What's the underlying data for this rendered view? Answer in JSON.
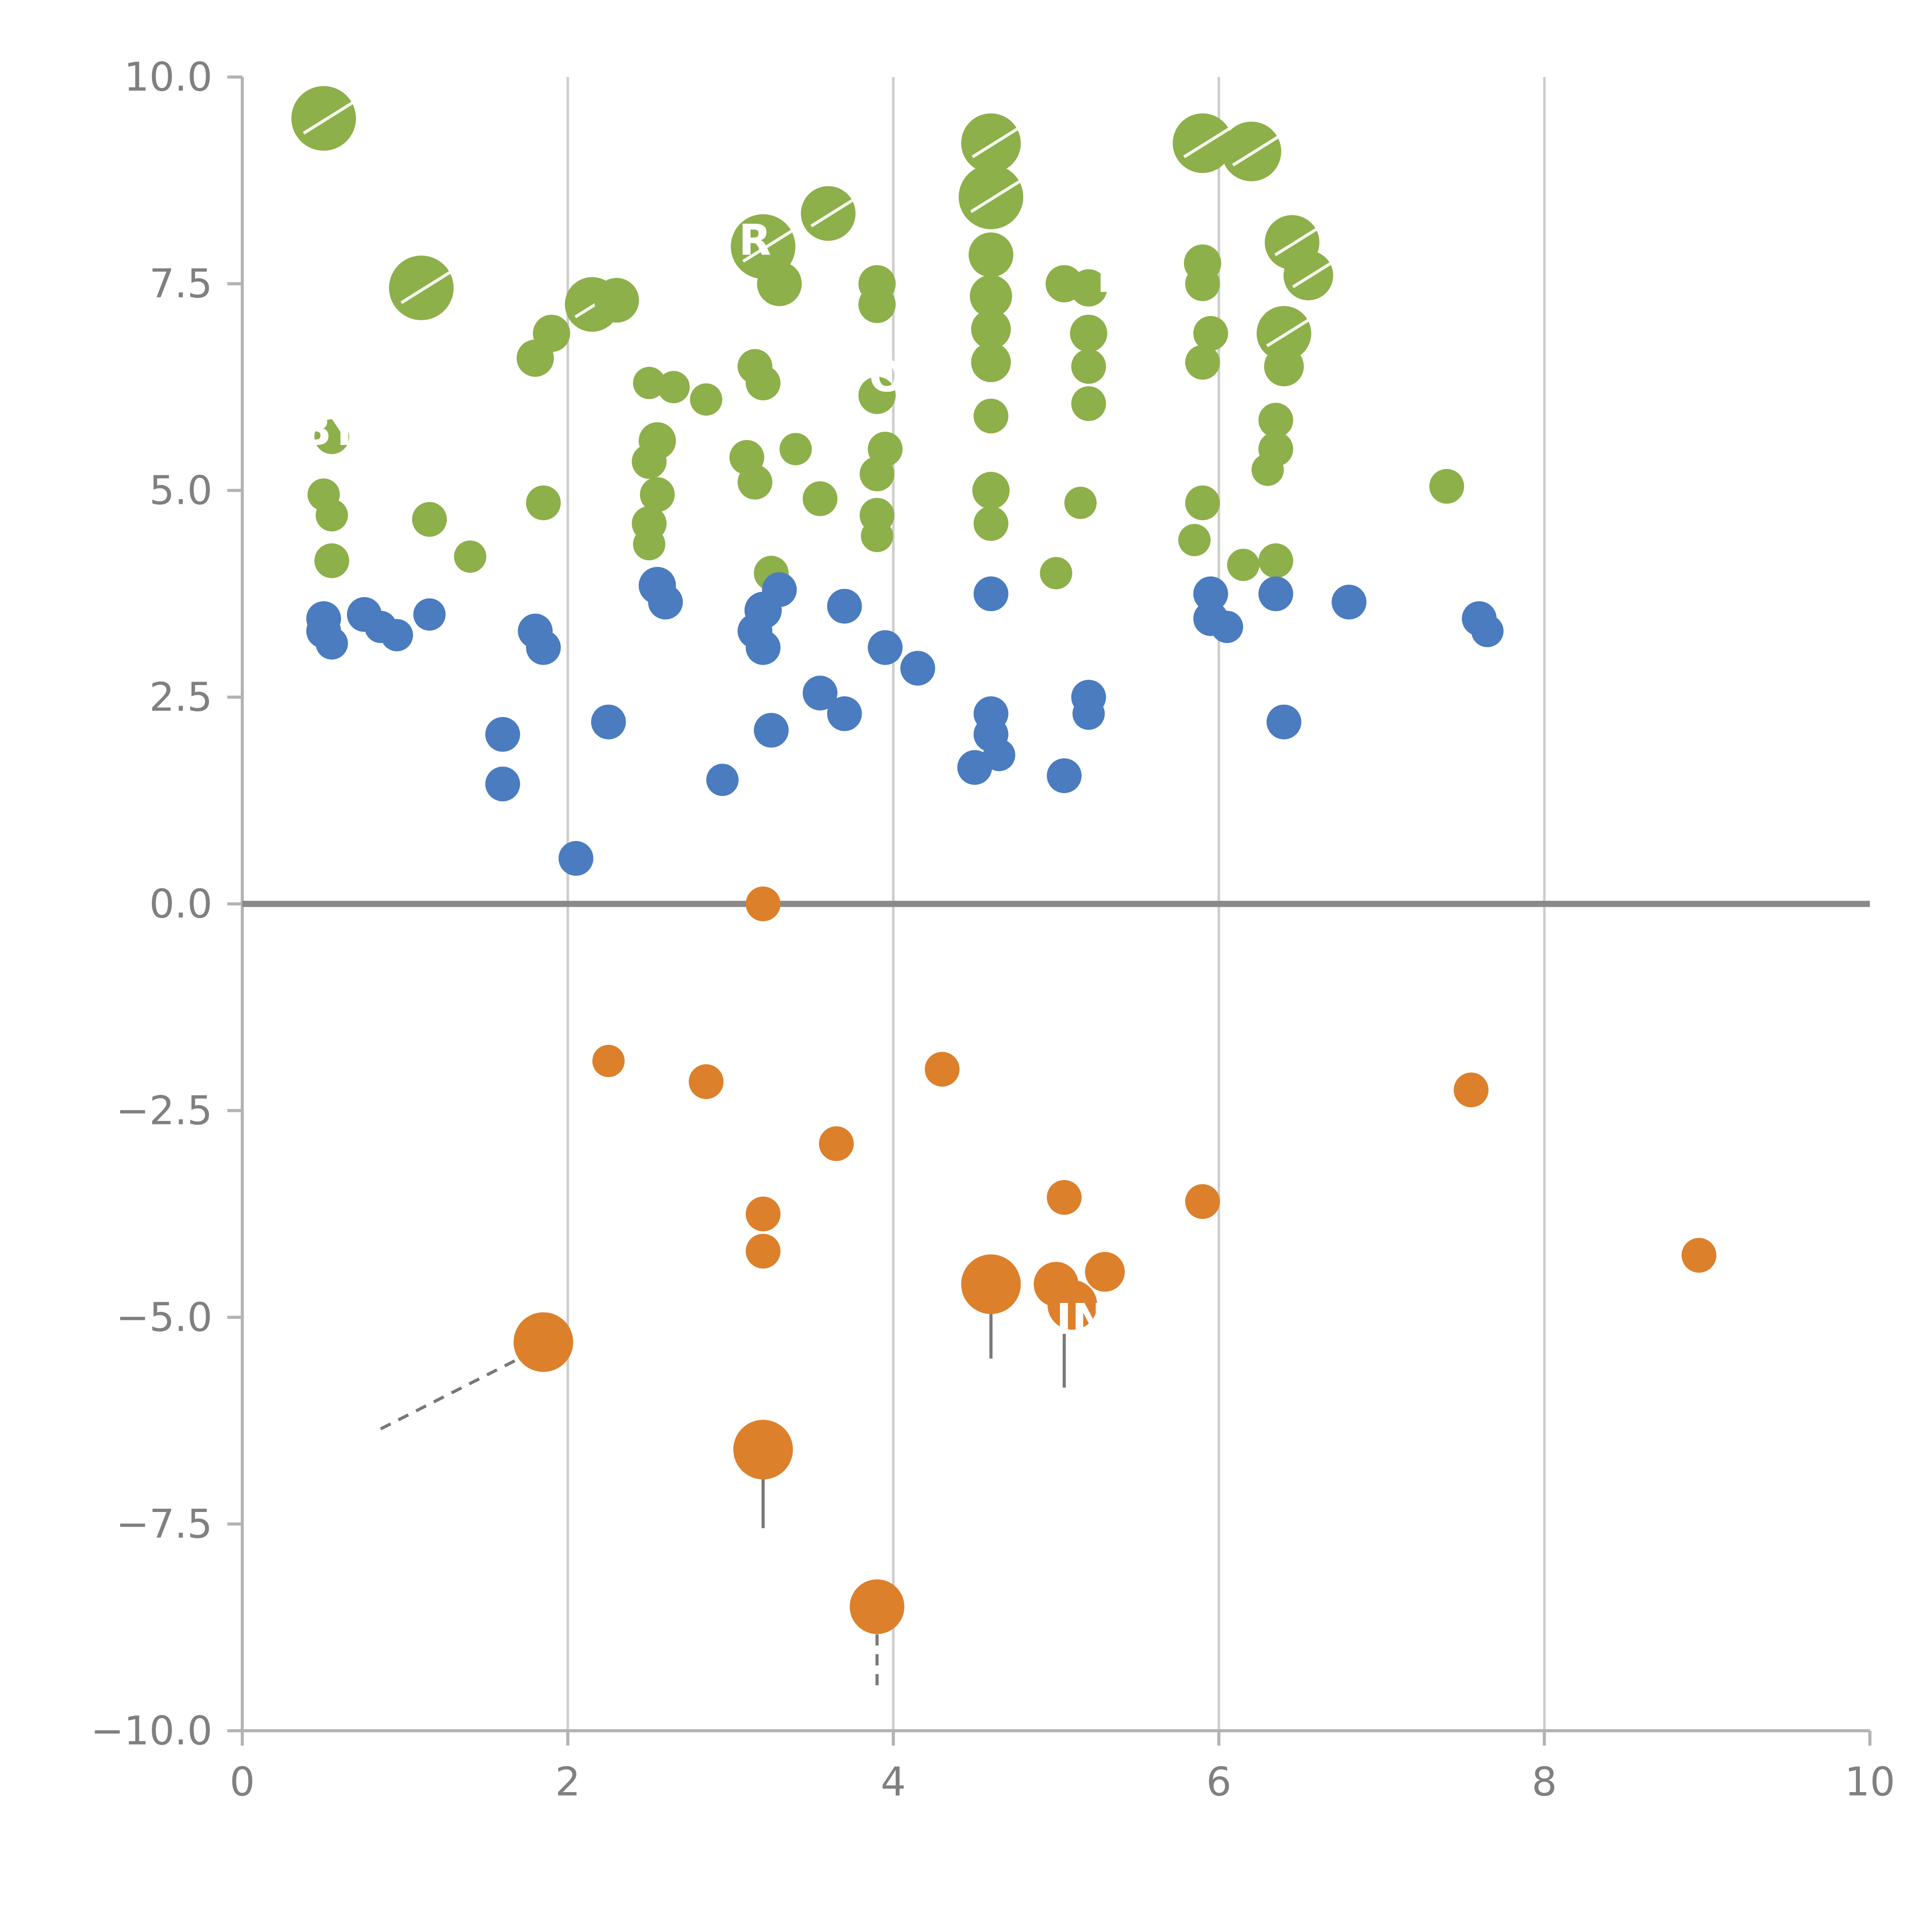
{
  "chart_data": {
    "type": "scatter",
    "title": "",
    "xlabel": "",
    "ylabel": "",
    "xlim": [
      0,
      10
    ],
    "ylim": [
      -10,
      10
    ],
    "x_ticks": [
      {
        "v": 0,
        "label": "0"
      },
      {
        "v": 2,
        "label": "2"
      },
      {
        "v": 4,
        "label": "4"
      },
      {
        "v": 6,
        "label": "6"
      },
      {
        "v": 8,
        "label": "8"
      },
      {
        "v": 10,
        "label": "10"
      }
    ],
    "y_ticks": [
      {
        "v": 10,
        "label": "10.0"
      },
      {
        "v": 7.5,
        "label": "7.5"
      },
      {
        "v": 5,
        "label": "5.0"
      },
      {
        "v": 2.5,
        "label": "2.5"
      },
      {
        "v": 0,
        "label": "0.0"
      },
      {
        "v": -2.5,
        "label": "−2.5"
      },
      {
        "v": -5,
        "label": "−5.0"
      },
      {
        "v": -7.5,
        "label": "−7.5"
      },
      {
        "v": -10,
        "label": "−10.0"
      }
    ],
    "grid_x": [
      2,
      4,
      6,
      8
    ],
    "zero_line_y": 0,
    "legend": "none",
    "point_format": [
      "x",
      "y",
      "radius_px",
      "has_white_pointer"
    ],
    "series": [
      {
        "name": "series-green",
        "color": "#8db04a",
        "points": [
          [
            0.5,
            9.5,
            26,
            1
          ],
          [
            1.1,
            7.45,
            26,
            1
          ],
          [
            0.55,
            5.65,
            14,
            0
          ],
          [
            0.5,
            4.95,
            13,
            0
          ],
          [
            0.55,
            4.7,
            13,
            0
          ],
          [
            0.55,
            4.15,
            14,
            0
          ],
          [
            1.15,
            4.65,
            14,
            0
          ],
          [
            1.4,
            4.2,
            13,
            0
          ],
          [
            1.85,
            4.85,
            14,
            0
          ],
          [
            1.8,
            6.6,
            15,
            0
          ],
          [
            1.9,
            6.9,
            15,
            0
          ],
          [
            2.15,
            7.25,
            22,
            1
          ],
          [
            2.3,
            7.3,
            18,
            0
          ],
          [
            2.5,
            6.3,
            13,
            0
          ],
          [
            2.65,
            6.25,
            13,
            0
          ],
          [
            2.55,
            5.6,
            15,
            0
          ],
          [
            2.5,
            5.35,
            14,
            0
          ],
          [
            2.55,
            4.95,
            14,
            0
          ],
          [
            2.5,
            4.6,
            14,
            0
          ],
          [
            2.5,
            4.35,
            13,
            0
          ],
          [
            2.85,
            6.1,
            13,
            0
          ],
          [
            3.2,
            7.95,
            26,
            1
          ],
          [
            3.3,
            7.5,
            18,
            0
          ],
          [
            3.15,
            6.5,
            14,
            0
          ],
          [
            3.2,
            6.3,
            14,
            0
          ],
          [
            3.1,
            5.4,
            14,
            0
          ],
          [
            3.15,
            5.1,
            14,
            0
          ],
          [
            3.25,
            4.0,
            14,
            0
          ],
          [
            3.4,
            5.5,
            13,
            0
          ],
          [
            3.6,
            8.35,
            22,
            1
          ],
          [
            3.55,
            4.9,
            14,
            0
          ],
          [
            3.9,
            7.5,
            15,
            0
          ],
          [
            3.9,
            7.25,
            15,
            0
          ],
          [
            3.9,
            6.15,
            15,
            0
          ],
          [
            3.95,
            5.5,
            14,
            0
          ],
          [
            3.9,
            5.2,
            14,
            0
          ],
          [
            3.9,
            4.7,
            14,
            0
          ],
          [
            3.9,
            4.45,
            13,
            0
          ],
          [
            4.6,
            9.2,
            24,
            1
          ],
          [
            4.6,
            8.55,
            26,
            1
          ],
          [
            4.6,
            7.85,
            18,
            0
          ],
          [
            4.6,
            7.35,
            17,
            0
          ],
          [
            4.6,
            6.95,
            16,
            0
          ],
          [
            4.6,
            6.55,
            16,
            0
          ],
          [
            4.6,
            5.9,
            14,
            0
          ],
          [
            4.6,
            5.0,
            15,
            0
          ],
          [
            4.6,
            4.6,
            14,
            0
          ],
          [
            5.05,
            7.5,
            15,
            0
          ],
          [
            5.2,
            7.45,
            15,
            0
          ],
          [
            5.2,
            6.9,
            15,
            0
          ],
          [
            5.2,
            6.5,
            14,
            0
          ],
          [
            5.2,
            6.05,
            14,
            0
          ],
          [
            5.15,
            4.85,
            13,
            0
          ],
          [
            5.0,
            4.0,
            13,
            0
          ],
          [
            5.9,
            9.2,
            24,
            1
          ],
          [
            6.2,
            9.1,
            24,
            1
          ],
          [
            5.9,
            7.75,
            15,
            0
          ],
          [
            5.9,
            7.5,
            14,
            0
          ],
          [
            5.95,
            6.9,
            14,
            0
          ],
          [
            5.9,
            6.55,
            14,
            0
          ],
          [
            5.9,
            4.85,
            14,
            0
          ],
          [
            5.85,
            4.4,
            13,
            0
          ],
          [
            6.45,
            8.0,
            22,
            1
          ],
          [
            6.55,
            7.6,
            20,
            1
          ],
          [
            6.4,
            6.9,
            22,
            1
          ],
          [
            6.4,
            6.5,
            16,
            0
          ],
          [
            6.35,
            5.85,
            14,
            0
          ],
          [
            6.35,
            5.5,
            14,
            0
          ],
          [
            6.3,
            5.25,
            13,
            0
          ],
          [
            6.35,
            4.15,
            14,
            0
          ],
          [
            6.15,
            4.1,
            13,
            0
          ],
          [
            7.4,
            5.05,
            14,
            0
          ]
        ]
      },
      {
        "name": "series-blue",
        "color": "#4a7cbf",
        "points": [
          [
            0.5,
            3.45,
            14,
            0
          ],
          [
            0.5,
            3.3,
            14,
            0
          ],
          [
            0.55,
            3.15,
            13,
            0
          ],
          [
            0.75,
            3.5,
            14,
            0
          ],
          [
            0.85,
            3.35,
            13,
            0
          ],
          [
            0.95,
            3.25,
            13,
            0
          ],
          [
            1.15,
            3.5,
            13,
            0
          ],
          [
            1.6,
            2.05,
            14,
            0
          ],
          [
            1.6,
            1.45,
            14,
            0
          ],
          [
            1.8,
            3.3,
            14,
            0
          ],
          [
            1.85,
            3.1,
            14,
            0
          ],
          [
            2.05,
            0.55,
            14,
            0
          ],
          [
            2.25,
            2.2,
            14,
            0
          ],
          [
            2.55,
            3.85,
            15,
            0
          ],
          [
            2.6,
            3.65,
            14,
            0
          ],
          [
            2.95,
            1.5,
            13,
            0
          ],
          [
            3.2,
            3.55,
            15,
            0
          ],
          [
            3.3,
            3.8,
            14,
            0
          ],
          [
            3.15,
            3.3,
            14,
            0
          ],
          [
            3.2,
            3.1,
            14,
            0
          ],
          [
            3.25,
            2.1,
            14,
            0
          ],
          [
            3.55,
            2.55,
            14,
            0
          ],
          [
            3.7,
            2.3,
            14,
            0
          ],
          [
            3.7,
            3.6,
            14,
            0
          ],
          [
            3.95,
            3.1,
            14,
            0
          ],
          [
            4.15,
            2.85,
            14,
            0
          ],
          [
            4.6,
            3.75,
            14,
            0
          ],
          [
            4.6,
            2.3,
            14,
            0
          ],
          [
            4.6,
            2.05,
            14,
            0
          ],
          [
            4.5,
            1.65,
            14,
            0
          ],
          [
            4.65,
            1.8,
            13,
            0
          ],
          [
            5.05,
            1.55,
            14,
            0
          ],
          [
            5.2,
            2.5,
            14,
            0
          ],
          [
            5.2,
            2.3,
            13,
            0
          ],
          [
            5.95,
            3.75,
            14,
            0
          ],
          [
            5.95,
            3.45,
            14,
            0
          ],
          [
            6.05,
            3.35,
            13,
            0
          ],
          [
            6.35,
            3.75,
            14,
            0
          ],
          [
            6.4,
            2.2,
            14,
            0
          ],
          [
            6.8,
            3.65,
            14,
            0
          ],
          [
            7.6,
            3.45,
            14,
            0
          ],
          [
            7.65,
            3.3,
            13,
            0
          ]
        ]
      },
      {
        "name": "series-orange",
        "color": "#dd802b",
        "points": [
          [
            3.2,
            0.0,
            14,
            0
          ],
          [
            2.25,
            -1.9,
            13,
            0
          ],
          [
            2.85,
            -2.15,
            14,
            0
          ],
          [
            4.3,
            -2.0,
            14,
            0
          ],
          [
            3.65,
            -2.9,
            14,
            0
          ],
          [
            3.2,
            -3.75,
            14,
            0
          ],
          [
            3.2,
            -4.2,
            14,
            0
          ],
          [
            5.05,
            -3.55,
            14,
            0
          ],
          [
            5.9,
            -3.6,
            14,
            0
          ],
          [
            7.55,
            -2.25,
            14,
            0
          ],
          [
            8.95,
            -4.25,
            14,
            0
          ],
          [
            4.6,
            -4.6,
            24,
            0
          ],
          [
            5.0,
            -4.6,
            18,
            0
          ],
          [
            5.1,
            -4.85,
            20,
            0
          ],
          [
            5.3,
            -4.45,
            16,
            0
          ],
          [
            1.85,
            -5.3,
            24,
            0
          ],
          [
            3.2,
            -6.6,
            24,
            0
          ],
          [
            3.9,
            -8.5,
            22,
            0
          ]
        ]
      }
    ],
    "leader_lines": [
      {
        "x1": 0.85,
        "y1": -6.35,
        "x2": 1.78,
        "y2": -5.42,
        "dashed": true
      },
      {
        "x1": 4.6,
        "y1": -5.5,
        "x2": 4.6,
        "y2": -4.75,
        "dashed": false
      },
      {
        "x1": 5.05,
        "y1": -5.85,
        "x2": 5.05,
        "y2": -5.0,
        "dashed": false
      },
      {
        "x1": 3.2,
        "y1": -7.55,
        "x2": 3.2,
        "y2": -6.8,
        "dashed": false
      },
      {
        "x1": 3.9,
        "y1": -9.45,
        "x2": 3.9,
        "y2": -8.7,
        "dashed": true
      }
    ],
    "label_fragments": [
      {
        "text": "BY",
        "x": 0.35,
        "y": 5.55
      },
      {
        "text": "R",
        "x": 3.05,
        "y": 7.85
      },
      {
        "text": "O",
        "x": 3.85,
        "y": 6.2
      },
      {
        "text": "E",
        "x": 5.25,
        "y": 7.4
      },
      {
        "text": "IN",
        "x": 5.0,
        "y": -5.2
      }
    ],
    "style": {
      "grid_color": "#cccccc",
      "spine_color": "#b3b3b3",
      "tick_color": "#b3b3b3",
      "tick_text_color": "#808080",
      "zero_line_color": "#8a8a8a",
      "leader_color": "#787878",
      "fragment_color": "#ffffff",
      "background": "#ffffff"
    }
  }
}
